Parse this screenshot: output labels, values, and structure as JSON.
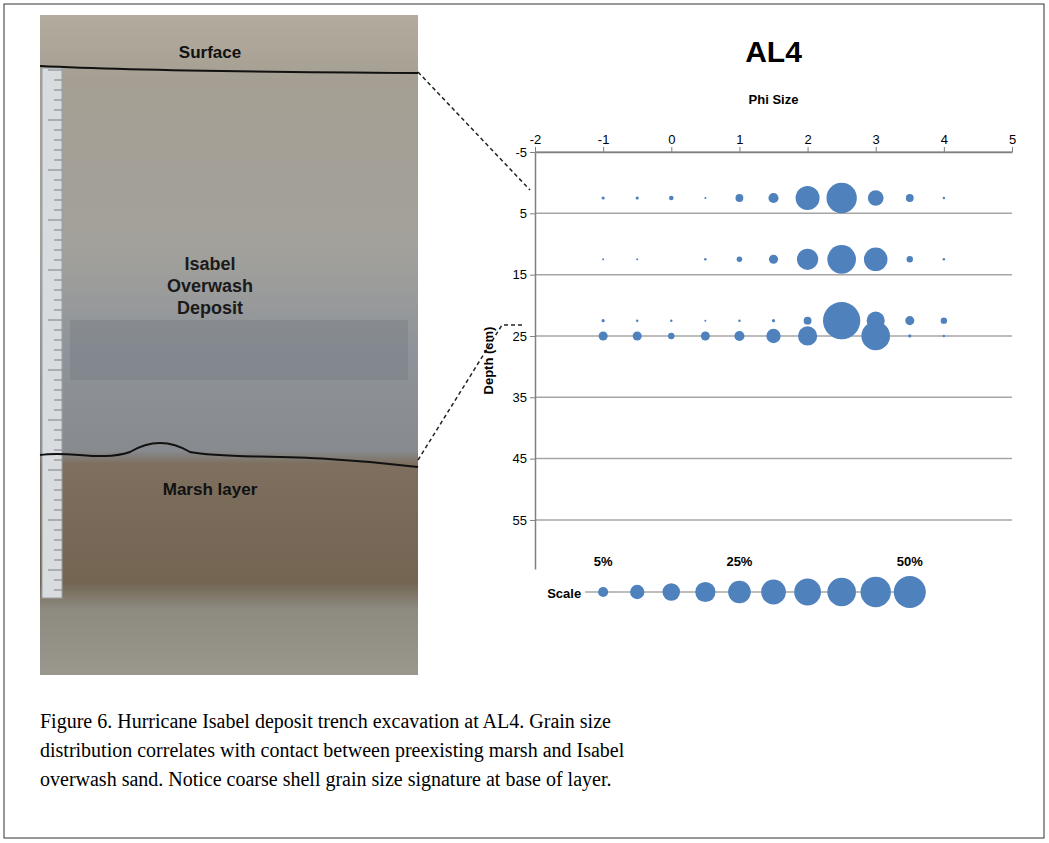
{
  "chart_data": {
    "type": "bubble",
    "title": "AL4",
    "x_label": "Phi Size",
    "y_label": "Depth (cm)",
    "x": [
      -1,
      -0.5,
      0,
      0.5,
      1,
      1.5,
      2,
      2.5,
      3,
      3.5,
      4
    ],
    "series": [
      {
        "y": 2.5,
        "sizes": [
          0.5,
          0.5,
          1,
          0.2,
          3,
          5,
          28,
          45,
          12,
          3,
          0.3
        ]
      },
      {
        "y": 12.5,
        "sizes": [
          0.2,
          0.2,
          0,
          0.3,
          1.5,
          4,
          22,
          40,
          27,
          2,
          0.3
        ]
      },
      {
        "y": 22.5,
        "sizes": [
          0.5,
          0.3,
          0.3,
          0.2,
          0.3,
          0.5,
          3,
          68,
          16,
          4,
          2
        ]
      },
      {
        "y": 25,
        "sizes": [
          4,
          4,
          2,
          4,
          5,
          10,
          18,
          2,
          40,
          0.5,
          0.3
        ]
      }
    ],
    "color": "#4f81bd",
    "xlim": [
      -2,
      5
    ],
    "xticks": [
      -2,
      -1,
      0,
      1,
      2,
      3,
      4,
      5
    ],
    "ylim": [
      -5,
      63
    ],
    "yticks": [
      -5,
      5,
      15,
      25,
      35,
      45,
      55
    ],
    "grid": true,
    "size_scale": {
      "label": "Scale",
      "values": [
        5,
        10,
        15,
        20,
        25,
        30,
        35,
        40,
        45,
        50
      ],
      "ticks": [
        {
          "value": 5,
          "label": "5%"
        },
        {
          "value": 25,
          "label": "25%"
        },
        {
          "value": 50,
          "label": "50%"
        }
      ]
    }
  },
  "photo": {
    "labels": {
      "surface": "Surface",
      "deposit": [
        "Isabel",
        "Overwash",
        "Deposit"
      ],
      "marsh": "Marsh layer"
    }
  },
  "caption": [
    "Figure 6. Hurricane Isabel deposit trench excavation at AL4. Grain size",
    "distribution correlates with contact between preexisting marsh and Isabel",
    "overwash sand. Notice coarse shell grain size signature at base of layer."
  ]
}
